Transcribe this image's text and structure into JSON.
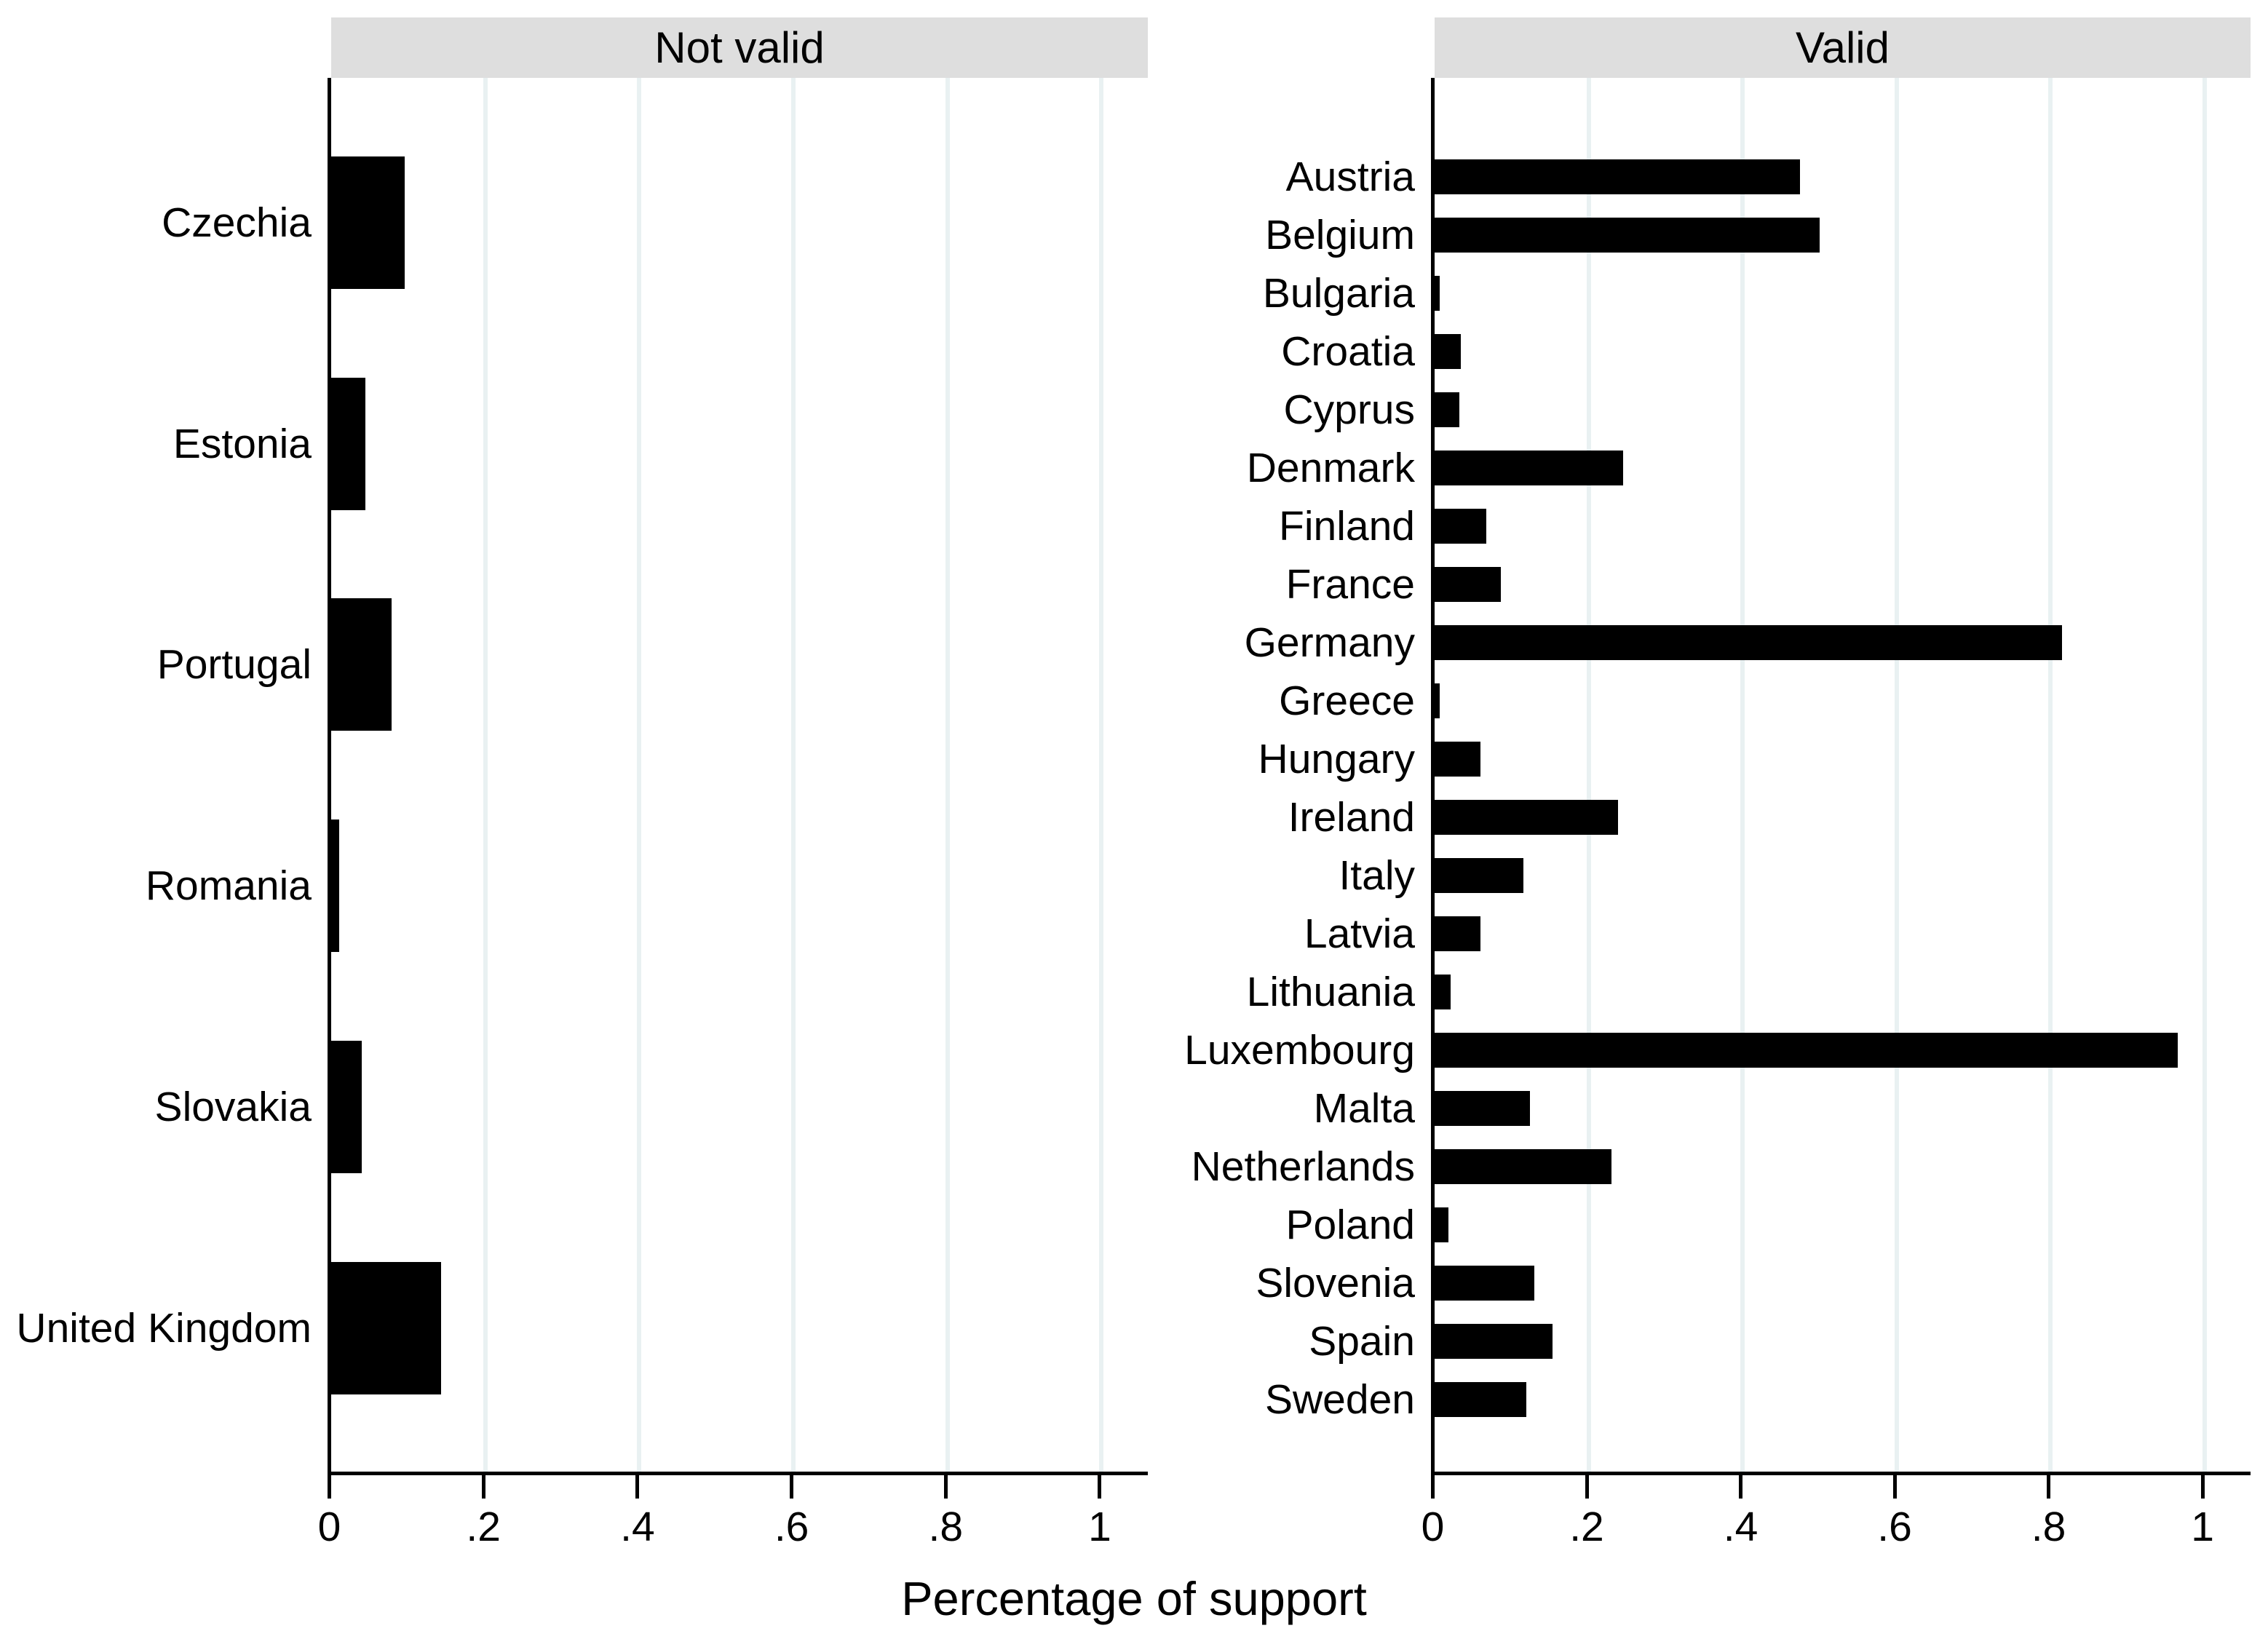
{
  "figure": {
    "xlabel": "Percentage of support",
    "header_bg": "#dedede",
    "grid_color": "#e9f1f2",
    "bar_color": "#000000",
    "axis_color": "#000000",
    "background": "#ffffff"
  },
  "chart_data": [
    {
      "type": "bar",
      "orientation": "horizontal",
      "panel_title": "Not valid",
      "xlabel": "Percentage of support",
      "xlim": [
        0,
        1.06
      ],
      "xticks": [
        0,
        0.2,
        0.4,
        0.6,
        0.8,
        1
      ],
      "xtick_labels": [
        "0",
        ".2",
        ".4",
        ".6",
        ".8",
        "1"
      ],
      "grid": true,
      "legend": "none",
      "categories": [
        "Czechia",
        "Estonia",
        "Portugal",
        "Romania",
        "Slovakia",
        "United Kingdom"
      ],
      "values": [
        0.095,
        0.044,
        0.078,
        0.01,
        0.04,
        0.143
      ]
    },
    {
      "type": "bar",
      "orientation": "horizontal",
      "panel_title": "Valid",
      "xlabel": "Percentage of support",
      "xlim": [
        0,
        1.06
      ],
      "xticks": [
        0,
        0.2,
        0.4,
        0.6,
        0.8,
        1
      ],
      "xtick_labels": [
        "0",
        ".2",
        ".4",
        ".6",
        ".8",
        "1"
      ],
      "grid": true,
      "legend": "none",
      "categories": [
        "Austria",
        "Belgium",
        "Bulgaria",
        "Croatia",
        "Cyprus",
        "Denmark",
        "Finland",
        "France",
        "Germany",
        "Greece",
        "Hungary",
        "Ireland",
        "Italy",
        "Latvia",
        "Lithuania",
        "Luxembourg",
        "Malta",
        "Netherlands",
        "Poland",
        "Slovenia",
        "Spain",
        "Sweden"
      ],
      "values": [
        0.475,
        0.5,
        0.007,
        0.034,
        0.032,
        0.245,
        0.067,
        0.086,
        0.815,
        0.007,
        0.06,
        0.238,
        0.115,
        0.06,
        0.021,
        0.965,
        0.124,
        0.23,
        0.018,
        0.13,
        0.153,
        0.119
      ]
    }
  ]
}
